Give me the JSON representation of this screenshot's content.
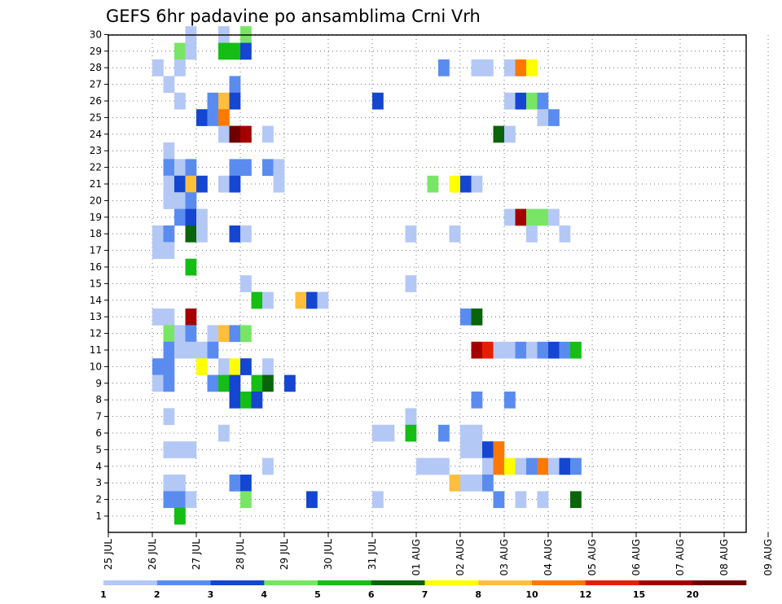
{
  "chart_data": {
    "type": "heatmap",
    "title": "GEFS 6hr padavine po ansamblima Crni Vrh",
    "xlabel": "",
    "ylabel": "",
    "x_tick_labels": [
      "25 JUL",
      "26 JUL",
      "27 JUL",
      "28 JUL",
      "29 JUL",
      "30 JUL",
      "31 JUL",
      "01 AUG",
      "02 AUG",
      "03 AUG",
      "04 AUG",
      "05 AUG",
      "06 AUG",
      "07 AUG",
      "08 AUG",
      "09 AUG"
    ],
    "y_range": [
      1,
      30
    ],
    "y_tick_labels": [
      "1",
      "2",
      "3",
      "4",
      "5",
      "6",
      "7",
      "8",
      "9",
      "10",
      "11",
      "12",
      "13",
      "14",
      "15",
      "16",
      "17",
      "18",
      "19",
      "20",
      "21",
      "22",
      "23",
      "24",
      "25",
      "26",
      "27",
      "28",
      "29",
      "30"
    ],
    "time_step_hours": 6,
    "grid": true,
    "colorbar": {
      "placement": "bottom",
      "boundaries": [
        "1",
        "2",
        "3",
        "4",
        "5",
        "6",
        "7",
        "8",
        "10",
        "12",
        "15",
        "20"
      ],
      "colors": [
        "#b4c8f5",
        "#5a8cf0",
        "#1446d2",
        "#78e664",
        "#14be14",
        "#0a640a",
        "#ffff00",
        "#ffbe3c",
        "#ff7800",
        "#e61e00",
        "#a50000",
        "#6e0000"
      ]
    },
    "cells_note": "each row: [member, time_index (6h steps from 25 JUL 00Z), color_index]",
    "cells": [
      [
        30,
        7,
        0
      ],
      [
        30,
        10,
        0
      ],
      [
        30,
        12,
        3
      ],
      [
        29,
        6,
        3
      ],
      [
        29,
        7,
        0
      ],
      [
        29,
        10,
        4
      ],
      [
        29,
        11,
        4
      ],
      [
        29,
        12,
        2
      ],
      [
        28,
        4,
        0
      ],
      [
        28,
        6,
        0
      ],
      [
        28,
        30,
        1
      ],
      [
        28,
        33,
        0
      ],
      [
        28,
        34,
        0
      ],
      [
        28,
        36,
        0
      ],
      [
        28,
        37,
        8
      ],
      [
        28,
        38,
        6
      ],
      [
        27,
        5,
        0
      ],
      [
        27,
        11,
        1
      ],
      [
        26,
        6,
        0
      ],
      [
        26,
        9,
        1
      ],
      [
        26,
        10,
        7
      ],
      [
        26,
        11,
        2
      ],
      [
        26,
        24,
        2
      ],
      [
        26,
        36,
        0
      ],
      [
        26,
        37,
        2
      ],
      [
        26,
        38,
        3
      ],
      [
        26,
        39,
        1
      ],
      [
        25,
        8,
        2
      ],
      [
        25,
        9,
        1
      ],
      [
        25,
        10,
        8
      ],
      [
        25,
        39,
        0
      ],
      [
        25,
        40,
        1
      ],
      [
        24,
        10,
        0
      ],
      [
        24,
        11,
        11
      ],
      [
        24,
        12,
        10
      ],
      [
        24,
        14,
        0
      ],
      [
        24,
        35,
        5
      ],
      [
        24,
        36,
        0
      ],
      [
        23,
        5,
        0
      ],
      [
        22,
        5,
        1
      ],
      [
        22,
        6,
        0
      ],
      [
        22,
        7,
        1
      ],
      [
        22,
        11,
        1
      ],
      [
        22,
        12,
        1
      ],
      [
        22,
        14,
        1
      ],
      [
        22,
        15,
        0
      ],
      [
        21,
        5,
        0
      ],
      [
        21,
        6,
        2
      ],
      [
        21,
        7,
        7
      ],
      [
        21,
        8,
        2
      ],
      [
        21,
        10,
        0
      ],
      [
        21,
        11,
        2
      ],
      [
        21,
        15,
        0
      ],
      [
        21,
        29,
        3
      ],
      [
        21,
        31,
        6
      ],
      [
        21,
        32,
        2
      ],
      [
        21,
        33,
        0
      ],
      [
        20,
        5,
        0
      ],
      [
        20,
        6,
        0
      ],
      [
        20,
        7,
        1
      ],
      [
        19,
        6,
        1
      ],
      [
        19,
        7,
        2
      ],
      [
        19,
        8,
        0
      ],
      [
        19,
        36,
        0
      ],
      [
        19,
        37,
        10
      ],
      [
        19,
        38,
        3
      ],
      [
        19,
        39,
        3
      ],
      [
        19,
        40,
        0
      ],
      [
        18,
        4,
        0
      ],
      [
        18,
        5,
        1
      ],
      [
        18,
        7,
        5
      ],
      [
        18,
        8,
        0
      ],
      [
        18,
        11,
        2
      ],
      [
        18,
        12,
        0
      ],
      [
        18,
        27,
        0
      ],
      [
        18,
        31,
        0
      ],
      [
        18,
        38,
        0
      ],
      [
        18,
        41,
        0
      ],
      [
        17,
        4,
        0
      ],
      [
        17,
        5,
        0
      ],
      [
        16,
        7,
        4
      ],
      [
        15,
        12,
        0
      ],
      [
        15,
        27,
        0
      ],
      [
        14,
        13,
        4
      ],
      [
        14,
        14,
        0
      ],
      [
        14,
        17,
        7
      ],
      [
        14,
        18,
        2
      ],
      [
        14,
        19,
        0
      ],
      [
        13,
        4,
        0
      ],
      [
        13,
        5,
        0
      ],
      [
        13,
        7,
        10
      ],
      [
        13,
        32,
        1
      ],
      [
        13,
        33,
        5
      ],
      [
        12,
        5,
        3
      ],
      [
        12,
        6,
        0
      ],
      [
        12,
        7,
        1
      ],
      [
        12,
        9,
        0
      ],
      [
        12,
        10,
        7
      ],
      [
        12,
        11,
        1
      ],
      [
        12,
        12,
        3
      ],
      [
        11,
        5,
        1
      ],
      [
        11,
        6,
        0
      ],
      [
        11,
        7,
        0
      ],
      [
        11,
        8,
        0
      ],
      [
        11,
        9,
        1
      ],
      [
        11,
        33,
        10
      ],
      [
        11,
        34,
        9
      ],
      [
        11,
        35,
        0
      ],
      [
        11,
        36,
        0
      ],
      [
        11,
        37,
        1
      ],
      [
        11,
        38,
        0
      ],
      [
        11,
        39,
        1
      ],
      [
        11,
        40,
        2
      ],
      [
        11,
        41,
        1
      ],
      [
        11,
        42,
        4
      ],
      [
        10,
        4,
        1
      ],
      [
        10,
        5,
        1
      ],
      [
        10,
        8,
        6
      ],
      [
        10,
        10,
        0
      ],
      [
        10,
        11,
        6
      ],
      [
        10,
        12,
        2
      ],
      [
        10,
        14,
        0
      ],
      [
        9,
        4,
        0
      ],
      [
        9,
        5,
        1
      ],
      [
        9,
        9,
        1
      ],
      [
        9,
        10,
        4
      ],
      [
        9,
        11,
        2
      ],
      [
        9,
        13,
        4
      ],
      [
        9,
        14,
        5
      ],
      [
        9,
        16,
        2
      ],
      [
        8,
        11,
        2
      ],
      [
        8,
        12,
        4
      ],
      [
        8,
        13,
        2
      ],
      [
        8,
        33,
        1
      ],
      [
        8,
        36,
        1
      ],
      [
        7,
        5,
        0
      ],
      [
        7,
        27,
        0
      ],
      [
        6,
        10,
        0
      ],
      [
        6,
        24,
        0
      ],
      [
        6,
        25,
        0
      ],
      [
        6,
        27,
        4
      ],
      [
        6,
        30,
        1
      ],
      [
        6,
        32,
        0
      ],
      [
        6,
        33,
        0
      ],
      [
        5,
        5,
        0
      ],
      [
        5,
        6,
        0
      ],
      [
        5,
        7,
        0
      ],
      [
        5,
        32,
        0
      ],
      [
        5,
        33,
        0
      ],
      [
        5,
        34,
        2
      ],
      [
        5,
        35,
        8
      ],
      [
        4,
        14,
        0
      ],
      [
        4,
        28,
        0
      ],
      [
        4,
        29,
        0
      ],
      [
        4,
        30,
        0
      ],
      [
        4,
        34,
        0
      ],
      [
        4,
        35,
        8
      ],
      [
        4,
        36,
        6
      ],
      [
        4,
        37,
        0
      ],
      [
        4,
        38,
        1
      ],
      [
        4,
        39,
        8
      ],
      [
        4,
        40,
        0
      ],
      [
        4,
        41,
        2
      ],
      [
        4,
        42,
        1
      ],
      [
        3,
        5,
        0
      ],
      [
        3,
        6,
        0
      ],
      [
        3,
        11,
        1
      ],
      [
        3,
        12,
        2
      ],
      [
        3,
        31,
        7
      ],
      [
        3,
        32,
        0
      ],
      [
        3,
        33,
        0
      ],
      [
        3,
        34,
        1
      ],
      [
        2,
        5,
        1
      ],
      [
        2,
        6,
        1
      ],
      [
        2,
        7,
        0
      ],
      [
        2,
        12,
        3
      ],
      [
        2,
        18,
        2
      ],
      [
        2,
        24,
        0
      ],
      [
        2,
        35,
        1
      ],
      [
        2,
        37,
        0
      ],
      [
        2,
        39,
        0
      ],
      [
        2,
        42,
        5
      ],
      [
        1,
        6,
        4
      ]
    ]
  }
}
